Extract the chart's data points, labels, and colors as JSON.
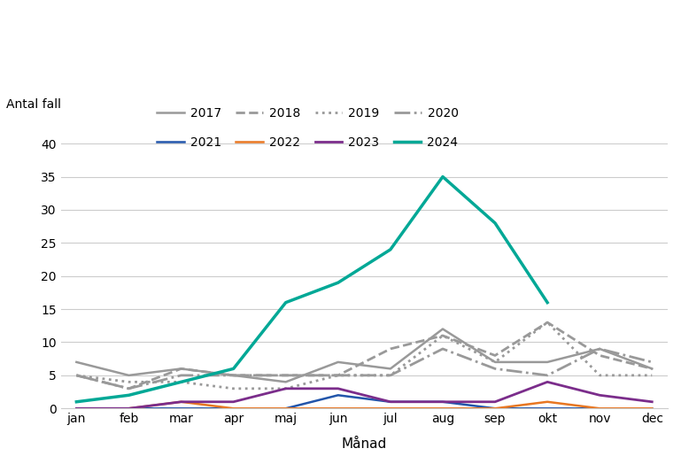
{
  "months": [
    "jan",
    "feb",
    "mar",
    "apr",
    "maj",
    "jun",
    "jul",
    "aug",
    "sep",
    "okt",
    "nov",
    "dec"
  ],
  "series": {
    "2017": [
      7,
      5,
      6,
      5,
      4,
      7,
      6,
      12,
      7,
      7,
      9,
      6
    ],
    "2018": [
      5,
      3,
      6,
      5,
      5,
      5,
      9,
      11,
      8,
      13,
      8,
      6
    ],
    "2019": [
      5,
      4,
      4,
      3,
      3,
      5,
      5,
      11,
      7,
      13,
      5,
      5
    ],
    "2020": [
      5,
      3,
      5,
      5,
      5,
      5,
      5,
      9,
      6,
      5,
      9,
      7
    ],
    "2021": [
      0,
      0,
      0,
      0,
      0,
      2,
      1,
      1,
      0,
      0,
      0,
      0
    ],
    "2022": [
      0,
      0,
      1,
      0,
      0,
      0,
      0,
      0,
      0,
      1,
      0,
      0
    ],
    "2023": [
      0,
      0,
      1,
      1,
      3,
      3,
      1,
      1,
      1,
      4,
      2,
      1
    ],
    "2024": [
      1,
      2,
      4,
      6,
      16,
      19,
      24,
      35,
      28,
      16,
      null,
      null
    ]
  },
  "colors": {
    "2017": "#999999",
    "2018": "#999999",
    "2019": "#999999",
    "2020": "#999999",
    "2021": "#2255aa",
    "2022": "#e87722",
    "2023": "#7b2d8b",
    "2024": "#00a896"
  },
  "linestyles": {
    "2017": "solid",
    "2018": "dashed",
    "2019": "dotted",
    "2020": "dashdot",
    "2021": "solid",
    "2022": "solid",
    "2023": "solid",
    "2024": "solid"
  },
  "linewidths": {
    "2017": 1.8,
    "2018": 2.0,
    "2019": 2.0,
    "2020": 2.0,
    "2021": 1.8,
    "2022": 1.8,
    "2023": 2.0,
    "2024": 2.5
  },
  "ylabel": "Antal fall",
  "xlabel": "Månad",
  "ylim": [
    0,
    40
  ],
  "yticks": [
    0,
    5,
    10,
    15,
    20,
    25,
    30,
    35,
    40
  ],
  "background_color": "#ffffff",
  "grid_color": "#cccccc",
  "legend_row1": [
    "2017",
    "2018",
    "2019",
    "2020"
  ],
  "legend_row2": [
    "2021",
    "2022",
    "2023",
    "2024"
  ]
}
